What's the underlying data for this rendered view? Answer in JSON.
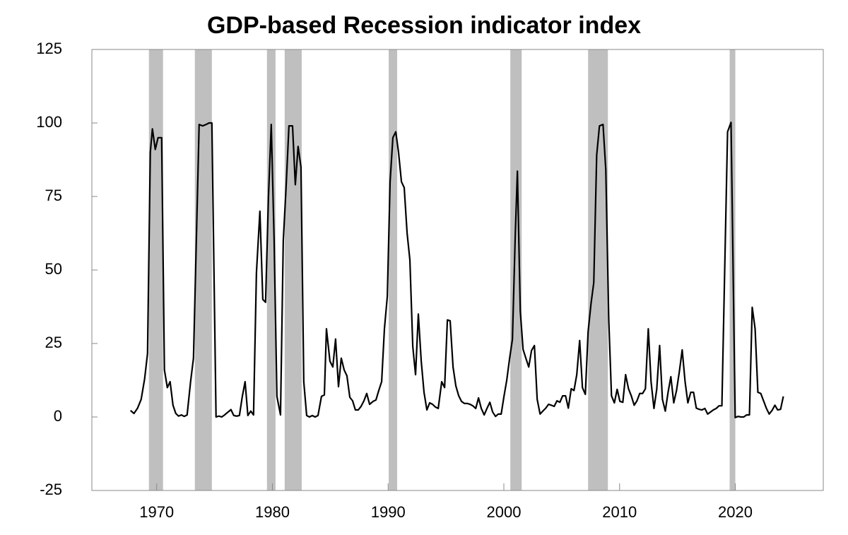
{
  "chart_data": {
    "type": "line",
    "title": "GDP-based Recession indicator index",
    "xlim": [
      1964.4,
      2027.6
    ],
    "xticks": [
      1970,
      1980,
      1990,
      2000,
      2010,
      2020
    ],
    "ylim": [
      -25,
      125
    ],
    "yticks": [
      -25,
      0,
      25,
      50,
      75,
      100,
      125
    ],
    "shaded_ranges": [
      [
        1969.33,
        1970.55
      ],
      [
        1973.3,
        1974.77
      ],
      [
        1979.53,
        1980.27
      ],
      [
        1981.06,
        1982.53
      ],
      [
        1990.05,
        1990.78
      ],
      [
        2000.56,
        2001.54
      ],
      [
        2007.28,
        2008.99
      ],
      [
        2019.51,
        2020.0
      ]
    ],
    "shade_color": "#bfbfbf",
    "series": [
      {
        "color": "#000000",
        "x": [
          1967.74,
          1968.04,
          1968.35,
          1968.66,
          1968.96,
          1969.21,
          1969.45,
          1969.63,
          1969.88,
          1970.12,
          1970.43,
          1970.67,
          1970.92,
          1971.16,
          1971.41,
          1971.65,
          1971.89,
          1972.14,
          1972.38,
          1972.63,
          1972.93,
          1973.18,
          1973.67,
          1973.97,
          1974.28,
          1974.52,
          1974.77,
          1974.95,
          1975.13,
          1975.38,
          1975.62,
          1975.87,
          1976.11,
          1976.42,
          1976.66,
          1976.91,
          1977.15,
          1977.4,
          1977.64,
          1977.88,
          1978.13,
          1978.37,
          1978.62,
          1978.92,
          1979.17,
          1979.41,
          1979.66,
          1979.9,
          1980.15,
          1980.39,
          1980.7,
          1980.94,
          1981.18,
          1981.43,
          1981.74,
          1981.98,
          1982.22,
          1982.47,
          1982.71,
          1982.96,
          1983.2,
          1983.45,
          1983.69,
          1983.94,
          1984.24,
          1984.49,
          1984.67,
          1984.97,
          1985.22,
          1985.46,
          1985.71,
          1985.95,
          1986.2,
          1986.44,
          1986.69,
          1986.93,
          1987.17,
          1987.42,
          1987.66,
          1987.91,
          1988.15,
          1988.4,
          1988.7,
          1988.95,
          1989.19,
          1989.44,
          1989.68,
          1989.93,
          1990.17,
          1990.41,
          1990.66,
          1990.9,
          1991.15,
          1991.39,
          1991.64,
          1991.88,
          1992.13,
          1992.37,
          1992.61,
          1992.86,
          1993.1,
          1993.35,
          1993.59,
          1993.84,
          1994.08,
          1994.33,
          1994.63,
          1994.88,
          1995.12,
          1995.36,
          1995.61,
          1995.85,
          1996.1,
          1996.34,
          1996.59,
          1996.83,
          1997.08,
          1997.32,
          1997.57,
          1997.81,
          1998.05,
          1998.3,
          1998.54,
          1998.79,
          1999.03,
          1999.28,
          1999.52,
          1999.77,
          2000.01,
          2000.25,
          2000.5,
          2000.74,
          2000.99,
          2001.17,
          2001.42,
          2001.66,
          2001.9,
          2002.15,
          2002.39,
          2002.64,
          2002.88,
          2003.13,
          2003.37,
          2003.62,
          2003.86,
          2004.1,
          2004.35,
          2004.59,
          2004.84,
          2005.08,
          2005.33,
          2005.57,
          2005.82,
          2006.06,
          2006.3,
          2006.55,
          2006.79,
          2007.04,
          2007.28,
          2007.53,
          2007.77,
          2008.02,
          2008.26,
          2008.57,
          2008.81,
          2009.06,
          2009.3,
          2009.55,
          2009.79,
          2010.03,
          2010.28,
          2010.52,
          2010.77,
          2011.01,
          2011.26,
          2011.5,
          2011.74,
          2011.99,
          2012.23,
          2012.48,
          2012.72,
          2012.97,
          2013.21,
          2013.46,
          2013.7,
          2013.95,
          2014.19,
          2014.43,
          2014.68,
          2014.92,
          2015.17,
          2015.41,
          2015.66,
          2015.9,
          2016.15,
          2016.39,
          2016.63,
          2016.88,
          2017.12,
          2017.37,
          2017.61,
          2017.86,
          2018.1,
          2018.35,
          2018.59,
          2018.84,
          2019.33,
          2019.63,
          2019.99,
          2020.24,
          2020.48,
          2020.73,
          2020.97,
          2021.22,
          2021.46,
          2021.71,
          2021.95,
          2022.2,
          2022.44,
          2022.69,
          2022.93,
          2023.17,
          2023.42,
          2023.66,
          2023.91,
          2024.15
        ],
        "values": [
          2.2,
          1.2,
          3,
          6,
          13,
          21.6,
          90,
          98,
          91,
          95,
          95,
          16,
          10,
          12,
          4,
          1.2,
          0.3,
          0.7,
          0.2,
          0.7,
          12,
          20,
          99.5,
          99,
          99.5,
          100,
          100,
          50,
          0,
          0.3,
          0,
          0.7,
          1.5,
          2.5,
          0.5,
          0.3,
          0.5,
          7,
          12,
          0.5,
          2,
          0.7,
          49,
          70,
          40,
          39,
          75,
          99.5,
          60,
          7,
          0.7,
          60,
          78,
          99,
          99,
          79,
          92,
          85,
          12,
          0.5,
          0,
          0.5,
          0,
          0.5,
          7,
          7.5,
          30,
          19,
          17,
          26.5,
          10.3,
          20,
          16,
          14,
          6.7,
          5.5,
          2.4,
          2.4,
          3.6,
          5.5,
          8,
          4.3,
          5.3,
          5.8,
          9,
          12,
          30,
          41,
          80,
          95,
          97,
          90,
          80,
          78,
          62.5,
          53.4,
          24,
          14.4,
          35,
          19,
          8.4,
          2.4,
          4.8,
          4.3,
          3.4,
          2.9,
          12,
          10,
          33,
          32.7,
          17,
          10.6,
          7.2,
          5.3,
          4.6,
          4.6,
          4.3,
          3.8,
          2.9,
          6.5,
          2.9,
          0.7,
          2.9,
          5,
          1.7,
          0.2,
          1,
          1,
          7,
          12.5,
          20,
          26.4,
          62.5,
          83.6,
          36,
          23,
          20,
          17,
          22.6,
          24.3,
          6,
          1,
          2,
          3,
          4.3,
          4,
          3.6,
          5.5,
          5,
          7.2,
          7.2,
          3,
          9.6,
          9,
          14.4,
          26,
          10,
          7.7,
          29,
          38.5,
          45.7,
          89,
          99,
          99.5,
          84,
          33.6,
          7.2,
          4.8,
          9.4,
          5.3,
          5,
          14.4,
          9.6,
          7.2,
          4,
          5.5,
          8,
          8,
          9.6,
          30,
          12,
          2.9,
          9.4,
          24.3,
          6,
          2,
          8.4,
          13.7,
          4.8,
          9,
          15.6,
          22.8,
          12,
          4.8,
          8.4,
          8.4,
          3,
          2.6,
          2.4,
          2.9,
          1,
          1.7,
          2.4,
          2.9,
          3.8,
          3.8,
          97,
          100.2,
          -0.2,
          0.2,
          0,
          0,
          0.7,
          0.7,
          37.3,
          30,
          8.4,
          8,
          5.5,
          2.9,
          1,
          2.2,
          4,
          2.4,
          2.6,
          7
        ]
      }
    ]
  }
}
